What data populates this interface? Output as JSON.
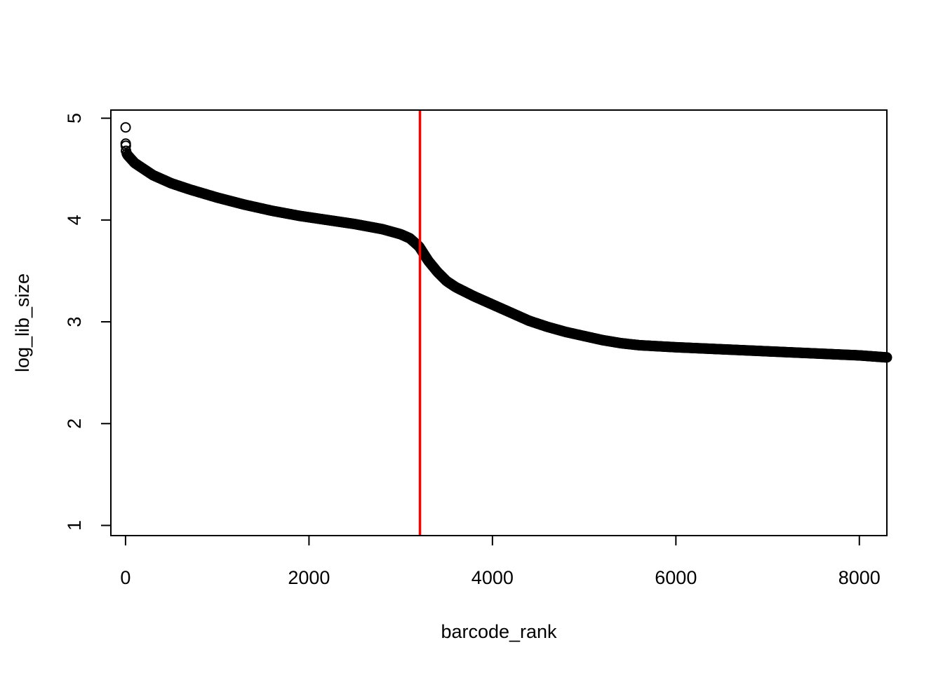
{
  "chart_data": {
    "type": "scatter",
    "title": "",
    "xlabel": "barcode_rank",
    "ylabel": "log_lib_size",
    "xlim": [
      -160,
      8300
    ],
    "ylim": [
      0.9,
      5.08
    ],
    "x_ticks": [
      0,
      2000,
      4000,
      6000,
      8000
    ],
    "x_tick_labels": [
      "0",
      "2000",
      "4000",
      "6000",
      "8000"
    ],
    "y_ticks": [
      1,
      2,
      3,
      4,
      5
    ],
    "y_tick_labels": [
      "1",
      "2",
      "3",
      "4",
      "5"
    ],
    "grid": false,
    "legend": "none",
    "vline": {
      "x": 3210,
      "color": "#ff0000"
    },
    "point_color": "#000000",
    "line_color": "#ff0000",
    "outliers": [
      {
        "x": 1,
        "y": 4.91
      },
      {
        "x": 2,
        "y": 4.75
      },
      {
        "x": 3,
        "y": 4.73
      }
    ],
    "series": [
      {
        "x": [
          5,
          10,
          20,
          40,
          60,
          80,
          100,
          150,
          200,
          300,
          400,
          500,
          700,
          1000,
          1300,
          1600,
          1900,
          2200,
          2500,
          2800,
          3000,
          3100,
          3200,
          3250,
          3300,
          3400,
          3500,
          3600,
          3800,
          4000,
          4200,
          4400,
          4600,
          4800,
          5000,
          5200,
          5400,
          5600,
          5800,
          6000,
          6500,
          7000,
          7500,
          8000,
          8300
        ],
        "y": [
          4.68,
          4.66,
          4.64,
          4.62,
          4.6,
          4.58,
          4.56,
          4.53,
          4.5,
          4.44,
          4.4,
          4.36,
          4.3,
          4.22,
          4.15,
          4.09,
          4.04,
          4.0,
          3.96,
          3.91,
          3.86,
          3.82,
          3.74,
          3.67,
          3.6,
          3.49,
          3.4,
          3.34,
          3.25,
          3.17,
          3.09,
          3.01,
          2.95,
          2.9,
          2.86,
          2.82,
          2.79,
          2.77,
          2.76,
          2.75,
          2.73,
          2.71,
          2.69,
          2.67,
          2.65
        ]
      }
    ]
  }
}
